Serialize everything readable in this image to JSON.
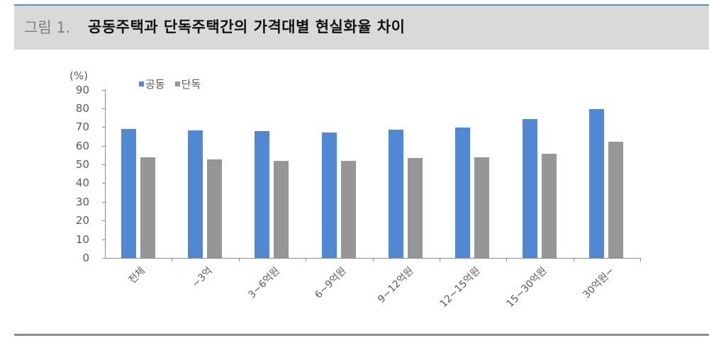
{
  "figure": {
    "number": "그림 1.",
    "title": "공동주택과 단독주택간의 가격대별 현실화율 차이"
  },
  "colors": {
    "accent_line": "#5b8ec9",
    "series_공동": "#5088d4",
    "series_단독": "#969696",
    "header_band": "#d9d9d9"
  },
  "chart_data": {
    "type": "bar",
    "title": "공동주택과 단독주택간의 가격대별 현실화율 차이",
    "xlabel": "",
    "ylabel": "(%)",
    "ylim": [
      0,
      90
    ],
    "yticks": [
      0,
      10,
      20,
      30,
      40,
      50,
      60,
      70,
      80,
      90
    ],
    "grid": false,
    "legend_position": "top-left",
    "categories": [
      "전체",
      "~3억",
      "3~6억원",
      "6~9억원",
      "9~12억원",
      "12~15억원",
      "15~30억원",
      "30억원~"
    ],
    "series": [
      {
        "name": "공동",
        "color": "#5088d4",
        "values": [
          68.8,
          68.2,
          67.9,
          67.0,
          68.6,
          69.6,
          74.4,
          79.4
        ]
      },
      {
        "name": "단독",
        "color": "#969696",
        "values": [
          53.7,
          52.5,
          52.0,
          52.1,
          53.3,
          53.7,
          55.8,
          62.2
        ]
      }
    ]
  }
}
